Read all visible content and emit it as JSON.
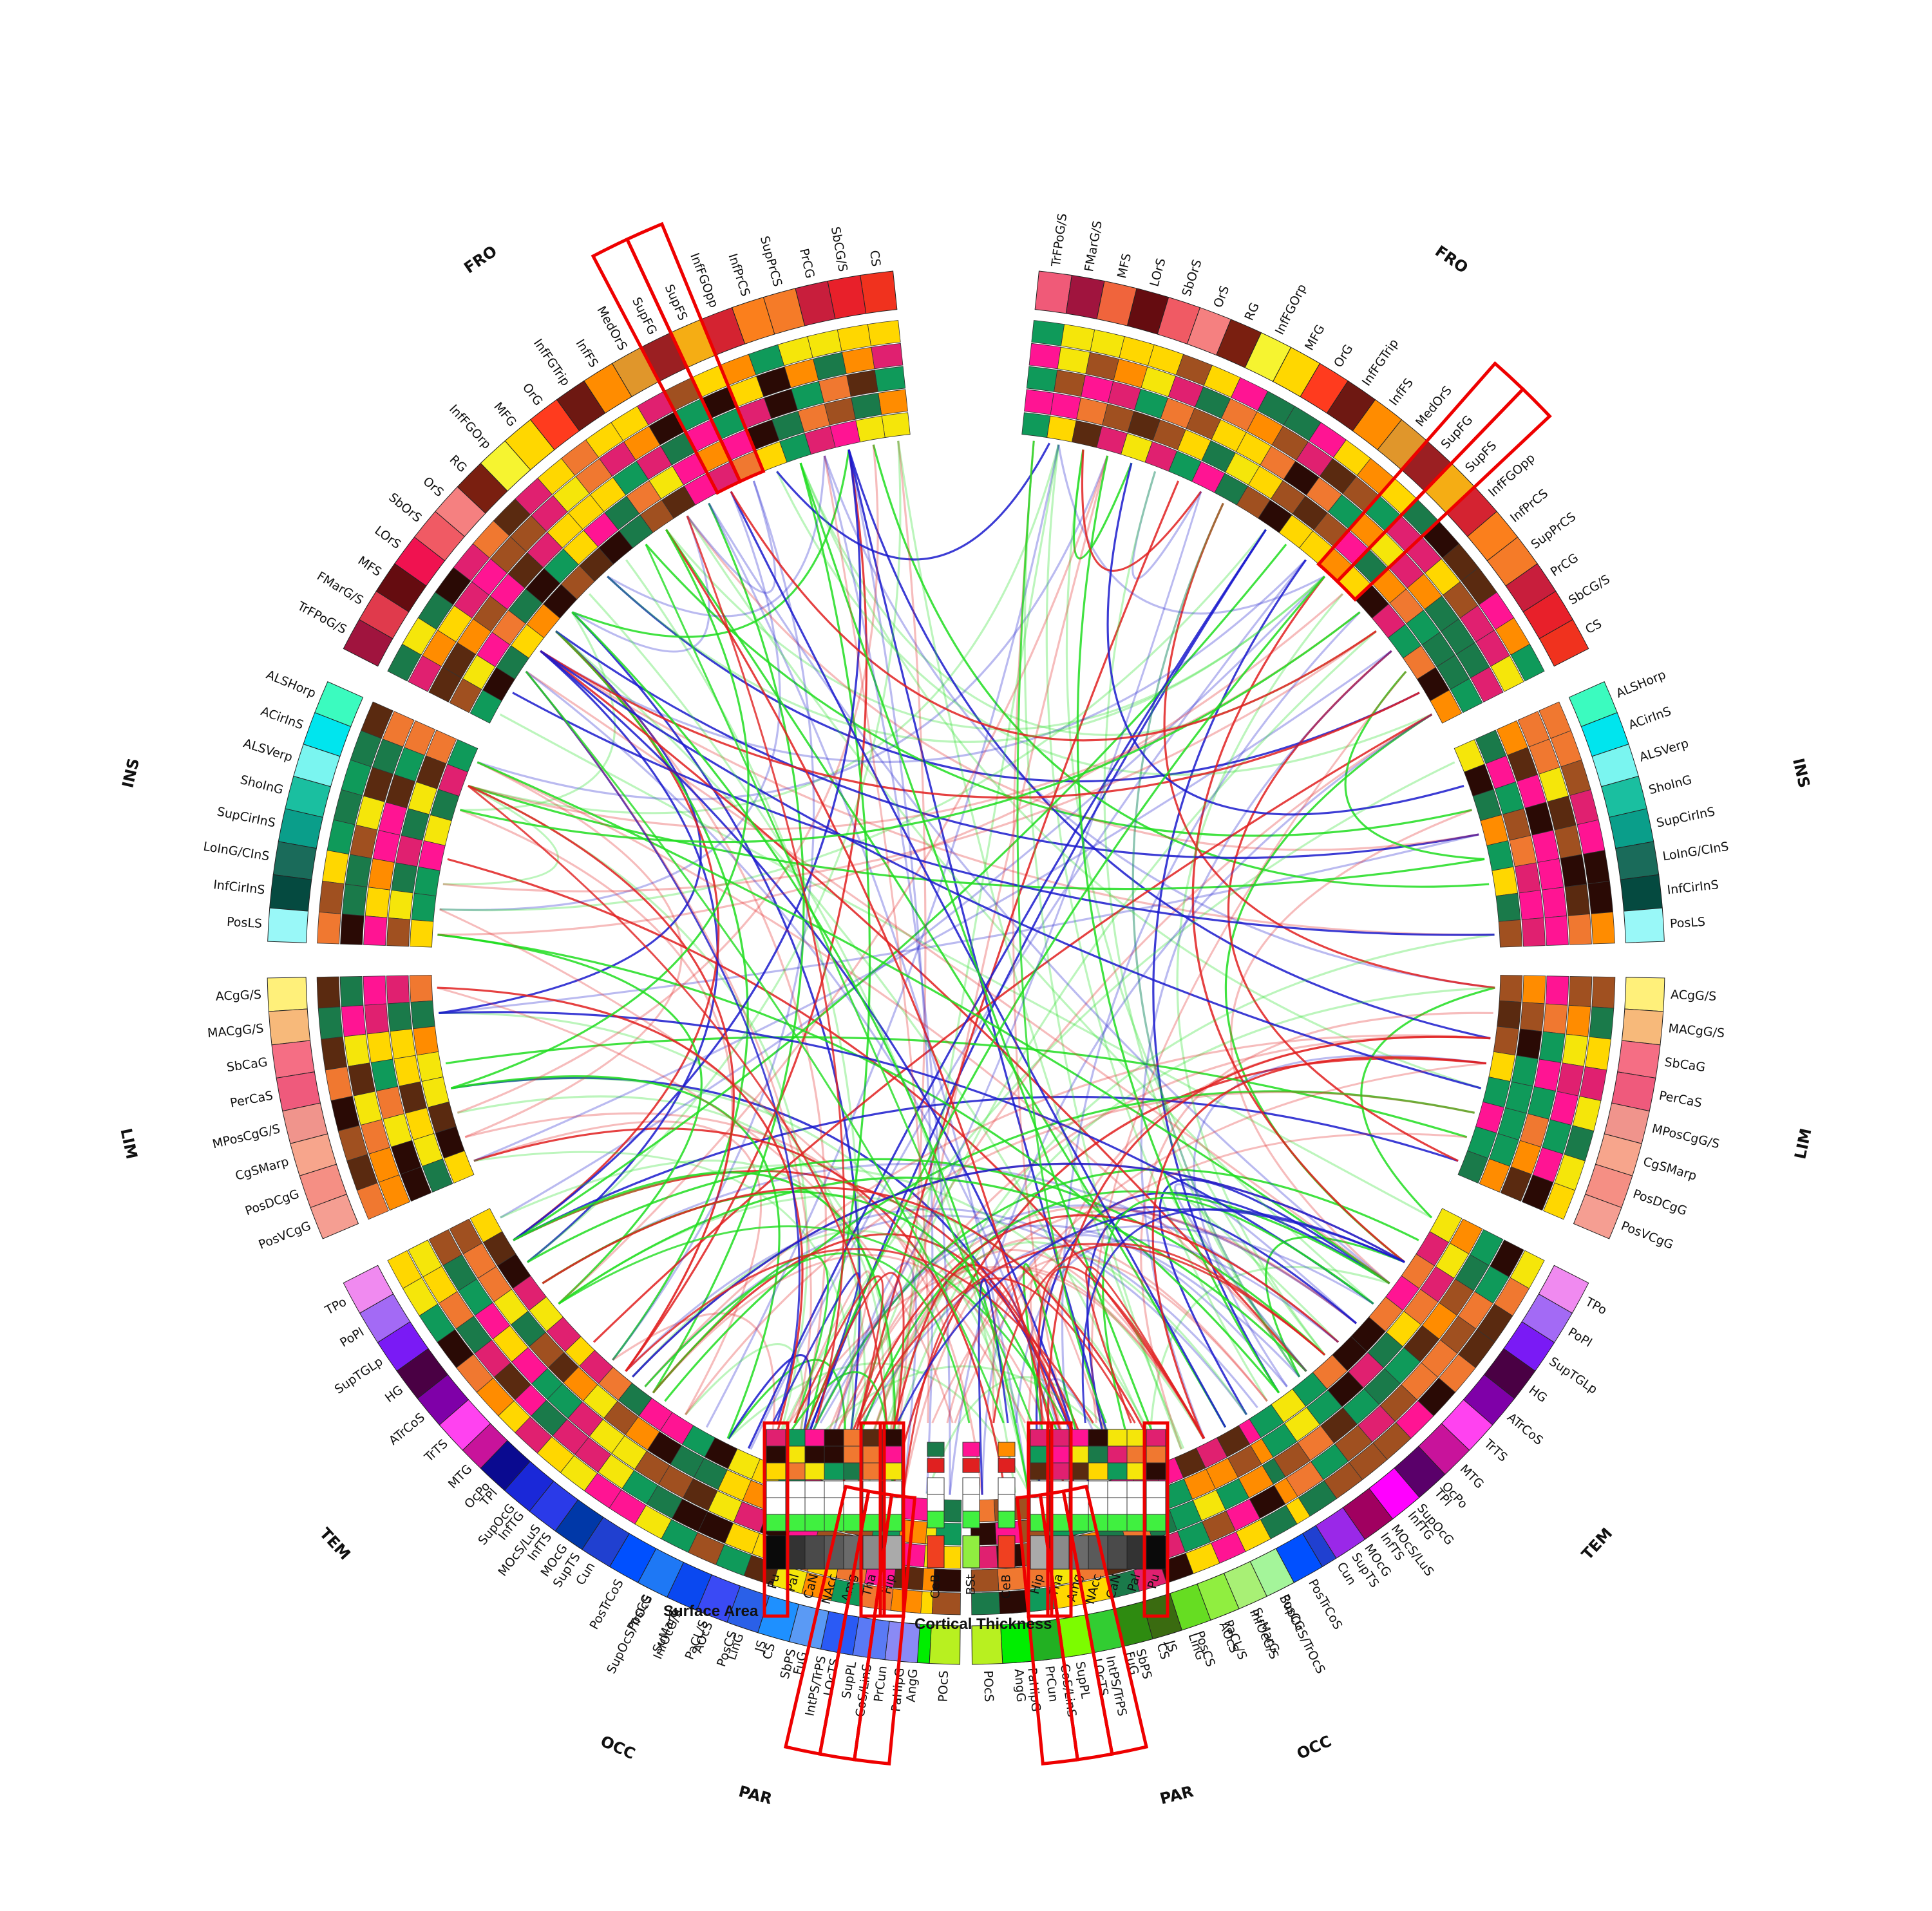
{
  "lobes": {
    "FRO": "FRO",
    "INS": "INS",
    "LIM": "LIM",
    "TEM": "TEM",
    "PAR": "PAR",
    "OCC": "OCC"
  },
  "legend": {
    "surface_area": "Surface Area",
    "cortical_thickness": "Cortical Thickness"
  },
  "left_groups": [
    {
      "lobe": "FRO",
      "color": "#e6262b",
      "regions": [
        "CS",
        "SbCG/S",
        "PrCG",
        "SupPrCS",
        "InfPrCS",
        "InfFGOpp",
        "SupFS",
        "SupFG",
        "MedOrS",
        "InfFS",
        "InfFGTrip",
        "OrG",
        "MFG",
        "InfFGOrp",
        "RG",
        "OrS",
        "SbOrS",
        "LOrS",
        "MFS",
        "FMarG/S",
        "TrFPoG/S"
      ],
      "colors": [
        "#f0321e",
        "#e8202a",
        "#c81e3c",
        "#f57b28",
        "#fb7f1c",
        "#d42331",
        "#f5ad14",
        "#9b1f22",
        "#e0962b",
        "#ff8c00",
        "#6e1812",
        "#ff3b1e",
        "#ffd700",
        "#f6f430",
        "#7a1f10",
        "#f58080",
        "#f05a64",
        "#f01250",
        "#650c10",
        "#e03a4c",
        "#a0143e"
      ]
    },
    {
      "lobe": "INS",
      "color": "#00d8e0",
      "regions": [
        "ALSHorp",
        "ACirInS",
        "ALSVerp",
        "ShoInG",
        "SupCirInS",
        "LoInG/CInS",
        "InfCirInS",
        "PosLS"
      ],
      "colors": [
        "#3bfbbf",
        "#00e5ee",
        "#7af5f0",
        "#1abfa0",
        "#0a9e8a",
        "#1a6b5a",
        "#054a40",
        "#99f8f8"
      ]
    },
    {
      "lobe": "LIM",
      "color": "#f08080",
      "regions": [
        "ACgG/S",
        "MACgG/S",
        "SbCaG",
        "PerCaS",
        "MPosCgG/S",
        "CgSMarp",
        "PosDCgG",
        "PosVCgG"
      ],
      "colors": [
        "#fff07a",
        "#f7b97a",
        "#f56e84",
        "#ef5a7c",
        "#f0948c",
        "#f7a58c",
        "#f58f84",
        "#f59e92"
      ]
    },
    {
      "lobe": "TEM",
      "color": "#8a2be2",
      "regions": [
        "TPo",
        "PoPl",
        "SupTGLp",
        "HG",
        "ATrCoS",
        "TrTS",
        "MTG",
        "TPl",
        "InfTG",
        "InfTS",
        "SupTS"
      ],
      "colors": [
        "#f08af0",
        "#a36af5",
        "#7a1af5",
        "#4a0044",
        "#7f00a8",
        "#ff42f0",
        "#c8139b",
        "#5a006a",
        "#ff00ff",
        "#a00060",
        "#9a28e8"
      ]
    },
    {
      "lobe": "PAR",
      "color": "#66dd22",
      "regions": [
        "PosCG",
        "SuMarG",
        "PaCL/S",
        "PosCS",
        "JS",
        "SbPS",
        "IntPS/TrPS",
        "SupPL",
        "PrCun",
        "AngG",
        "POcS"
      ],
      "colors": [
        "#a4f59a",
        "#a8f075",
        "#90ee40",
        "#66dd22",
        "#3a6b10",
        "#2e8b10",
        "#32cd32",
        "#7cfc00",
        "#22b022",
        "#00ee00",
        "#b8f020"
      ]
    },
    {
      "lobe": "OCC",
      "color": "#1e50f0",
      "regions": [
        "PaHipG",
        "CoS/LinS",
        "LOcTS",
        "FuG",
        "CS",
        "LinG",
        "AOcS",
        "InfOcG/S",
        "SupOcS/TrOcS",
        "PosTrCoS",
        "Cun",
        "MOcG",
        "MOcS/LuS",
        "SupOcG",
        "OcPo"
      ],
      "colors": [
        "#8a8af5",
        "#5a7af5",
        "#2a5af5",
        "#5a9af5",
        "#1e90ff",
        "#2a60e8",
        "#3a4af5",
        "#0a48f0",
        "#1e78f5",
        "#0050ff",
        "#2040d0",
        "#0038a8",
        "#2a3ae8",
        "#1a28d8",
        "#0a0a90"
      ]
    }
  ],
  "right_groups": [
    {
      "lobe": "FRO",
      "regions": [
        "TrFPoG/S",
        "FMarG/S",
        "MFS",
        "LOrS",
        "SbOrS",
        "OrS",
        "RG",
        "InfFGOrp",
        "MFG",
        "OrG",
        "InfFGTrip",
        "InfFS",
        "MedOrS",
        "SupFG",
        "SupFS",
        "InfFGOpp",
        "InfPrCS",
        "SupPrCS",
        "PrCG",
        "SbCG/S",
        "CS"
      ],
      "colors": [
        "#f05a78",
        "#a0143e",
        "#f0643c",
        "#650c10",
        "#f05a64",
        "#f58080",
        "#7a1f10",
        "#f6f430",
        "#ffd700",
        "#ff3b1e",
        "#6e1812",
        "#ff8c00",
        "#e0962b",
        "#9b1f22",
        "#f5ad14",
        "#d42331",
        "#fb7f1c",
        "#f57b28",
        "#c81e3c",
        "#e8202a",
        "#f0321e"
      ]
    },
    {
      "lobe": "INS",
      "regions": [
        "ALSHorp",
        "ACirInS",
        "ALSVerp",
        "ShoInG",
        "SupCirInS",
        "LoInG/CInS",
        "InfCirInS",
        "PosLS"
      ],
      "colors": [
        "#3bfbbf",
        "#00e5ee",
        "#7af5f0",
        "#1abfa0",
        "#0a9e8a",
        "#1a6b5a",
        "#054a40",
        "#99f8f8"
      ]
    },
    {
      "lobe": "LIM",
      "regions": [
        "ACgG/S",
        "MACgG/S",
        "SbCaG",
        "PerCaS",
        "MPosCgG/S",
        "CgSMarp",
        "PosDCgG",
        "PosVCgG"
      ],
      "colors": [
        "#fff07a",
        "#f7b97a",
        "#f56e84",
        "#ef5a7c",
        "#f0948c",
        "#f7a58c",
        "#f58f84",
        "#f59e92"
      ]
    },
    {
      "lobe": "TEM",
      "regions": [
        "TPo",
        "PoPl",
        "SupTGLp",
        "HG",
        "ATrCoS",
        "TrTS",
        "MTG",
        "TPl",
        "InfTG",
        "InfTS",
        "SupTS"
      ],
      "colors": [
        "#f08af0",
        "#a36af5",
        "#7a1af5",
        "#4a0044",
        "#7f00a8",
        "#ff42f0",
        "#c8139b",
        "#5a006a",
        "#ff00ff",
        "#a00060",
        "#9a28e8"
      ]
    },
    {
      "lobe": "PAR",
      "regions": [
        "PosCG",
        "SuMarG",
        "PaCL/S",
        "PosCS",
        "JS",
        "SbPS",
        "IntPS/TrPS",
        "SupPL",
        "PrCun",
        "AngG",
        "POcS"
      ],
      "colors": [
        "#a4f59a",
        "#a8f075",
        "#90ee40",
        "#66dd22",
        "#3a6b10",
        "#2e8b10",
        "#32cd32",
        "#7cfc00",
        "#22b022",
        "#00ee00",
        "#b8f020"
      ]
    },
    {
      "lobe": "OCC",
      "regions": [
        "PaHipG",
        "CoS/LinS",
        "LOcTS",
        "FuG",
        "CS",
        "LinG",
        "AOcS",
        "InfOcG/S",
        "SupOcS/TrOcS",
        "PosTrCoS",
        "Cun",
        "MOcG",
        "MOcS/LuS",
        "SupOcG",
        "OcPo"
      ],
      "colors": [
        "#8a8af5",
        "#5a7af5",
        "#2a5af5",
        "#5a9af5",
        "#1e90ff",
        "#2a60e8",
        "#3a4af5",
        "#0a48f0",
        "#1e78f5",
        "#0050ff",
        "#2040d0",
        "#0038a8",
        "#2a3ae8",
        "#1a28d8",
        "#0a0a90"
      ]
    }
  ],
  "subcortical_left": {
    "regions": [
      "Pu",
      "Pal",
      "CaN",
      "NAcc",
      "Amg",
      "Tha",
      "Hip"
    ],
    "colors": [
      "#0a0a0a",
      "#333333",
      "#4a4a4a",
      "#5a5a5a",
      "#6a6a6a",
      "#8a8a8a",
      "#aaaaaa"
    ]
  },
  "subcortical_right": {
    "regions": [
      "Hip",
      "Tha",
      "Amg",
      "NAcc",
      "CaN",
      "Pal",
      "Pu"
    ],
    "colors": [
      "#aaaaaa",
      "#8a8a8a",
      "#6a6a6a",
      "#5a5a5a",
      "#4a4a4a",
      "#333333",
      "#0a0a0a"
    ]
  },
  "midline": {
    "regions": [
      "CeB",
      "BSt",
      "CeB"
    ],
    "colors": [
      "#f04020",
      "#90ee40",
      "#f04020"
    ]
  },
  "highlighted": [
    "SupFS",
    "SupFG",
    "IntPS/TrPS",
    "SupPL",
    "PrCun",
    "Pu",
    "Tha",
    "Hip"
  ],
  "connection_colors": {
    "positive": "#e02020",
    "negative": "#1a1acc",
    "other": "#20dd20"
  },
  "heat_palette": [
    "#1a7a4a",
    "#0f9a5a",
    "#e02070",
    "#ff1493",
    "#ffd700",
    "#f5e60a",
    "#ff8c00",
    "#f07830",
    "#a05020",
    "#5a2a10",
    "#2a0a05",
    "#ffffff",
    "#1050a0"
  ]
}
